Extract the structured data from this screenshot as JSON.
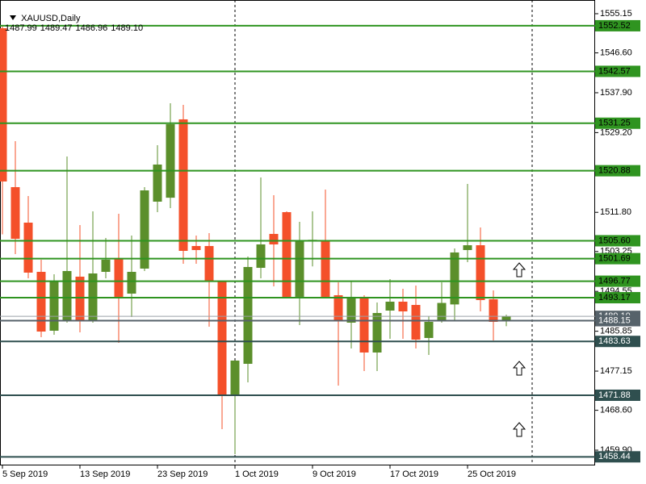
{
  "chart_data": {
    "type": "candlestick",
    "title": "XAUUSD,Daily",
    "last_ohlc": [
      1487.99,
      1489.47,
      1486.96,
      {
        "value": 1489.1,
        "label": "1489.10"
      }
    ],
    "categories": [
      "5 Sep 2019",
      null,
      null,
      null,
      null,
      null,
      "13 Sep 2019",
      null,
      null,
      null,
      null,
      null,
      "23 Sep 2019",
      null,
      null,
      null,
      null,
      null,
      "1 Oct 2019",
      null,
      null,
      null,
      null,
      null,
      "9 Oct 2019",
      null,
      null,
      null,
      null,
      null,
      "17 Oct 2019",
      null,
      null,
      null,
      null,
      null,
      "25 Oct 2019",
      null,
      null,
      null
    ],
    "open": [
      1551.98,
      1517.3,
      1509.55,
      1498.81,
      1485.96,
      1488.25,
      1497.76,
      1488.25,
      1498.81,
      1501.63,
      1494.06,
      1499.52,
      1514.13,
      1514.99,
      1532.09,
      1504.45,
      1504.45,
      1496.7,
      1472.05,
      1478.74,
      1499.69,
      1507.09,
      1511.84,
      1493.36,
      1505.5,
      1505.68,
      1493.71,
      1487.72,
      1493.36,
      1481.21,
      1490.36,
      1492.3,
      1491.59,
      1484.38,
      1488.07,
      1491.7,
      1503.57,
      1504.62,
      1492.83,
      1487.99
    ],
    "high": [
      1552.52,
      1527.33,
      1515.36,
      1501.46,
      1498.28,
      1523.99,
      1509.03,
      1512.02,
      1506.2,
      1511.49,
      1506.74,
      1517.3,
      1526.45,
      1535.61,
      1535.26,
      1506.74,
      1507.26,
      1496.88,
      1479.45,
      1502.16,
      1519.41,
      1515.53,
      1512.02,
      1509.73,
      1512.02,
      1516.77,
      1496.53,
      1496.88,
      1493.71,
      1492.13,
      1497.23,
      1495.11,
      1495.82,
      1489.13,
      1496.53,
      1503.92,
      1518.0,
      1508.5,
      1494.76,
      1489.47
    ],
    "low": [
      1507.0,
      1502.68,
      1497.4,
      1484.55,
      1485.08,
      1487.72,
      1485.61,
      1487.72,
      1497.4,
      1483.32,
      1488.95,
      1498.99,
      1511.84,
      1512.72,
      1500.57,
      1500.57,
      1486.84,
      1464.48,
      1459.03,
      1474.69,
      1497.4,
      1495.64,
      1493.18,
      1487.19,
      1500.0,
      1493.01,
      1473.99,
      1482.09,
      1477.15,
      1477.15,
      1484.2,
      1484.2,
      1482.09,
      1480.68,
      1487.72,
      1488.25,
      1500.92,
      1490.18,
      1483.85,
      1486.96
    ],
    "close": [
      1518.53,
      1506.03,
      1498.64,
      1485.78,
      1496.7,
      1498.99,
      1488.25,
      1498.46,
      1501.46,
      1493.36,
      1498.81,
      1516.59,
      1522.23,
      1531.03,
      1503.39,
      1503.57,
      1496.7,
      1472.05,
      1479.45,
      1499.87,
      1504.8,
      1504.8,
      1493.36,
      1505.68,
      1505.8,
      1493.36,
      1488.25,
      1493.36,
      1481.21,
      1489.83,
      1492.3,
      1490.18,
      1484.02,
      1487.9,
      1492.03,
      1503.04,
      1504.62,
      1492.65,
      1487.9,
      1489.1
    ],
    "up_color": "#5b8f2b",
    "down_color": "#f4502a",
    "ylim": [
      1456.56,
      1558.14
    ],
    "yticks": [
      {
        "value": 1555.15,
        "label": "1555.15"
      },
      {
        "value": 1546.6,
        "label": "1546.60"
      },
      {
        "value": 1537.9,
        "label": "1537.90"
      },
      {
        "value": 1529.2,
        "label": "1529.20"
      },
      {
        "value": 1511.8,
        "label": "1511.80"
      },
      1503.25,
      1494.55,
      1485.85,
      1477.15,
      {
        "value": 1468.6,
        "label": "1468.60"
      },
      {
        "value": 1459.9,
        "label": "1459.90"
      }
    ],
    "price_line": {
      "value": 1489.1,
      "label": "1489.10"
    },
    "levels": [
      {
        "price": 1552.52,
        "color": "#2f9420"
      },
      {
        "price": 1542.57,
        "color": "#2f9420"
      },
      {
        "price": 1531.25,
        "color": "#2f9420"
      },
      {
        "price": 1520.88,
        "color": "#2f9420"
      },
      {
        "price": {
          "value": 1505.6,
          "label": "1505.60"
        },
        "color": "#2f9420"
      },
      {
        "price": 1501.69,
        "color": "#2f9420"
      },
      {
        "price": 1496.77,
        "color": "#2f9420"
      },
      {
        "price": 1493.17,
        "color": "#2f9420"
      },
      {
        "price": 1488.15,
        "color": "#56626a"
      },
      {
        "price": 1483.63,
        "color": "#2f4f4f"
      },
      {
        "price": 1471.88,
        "color": "#2f4f4f"
      },
      {
        "price": 1458.44,
        "color": "#2f4f4f"
      }
    ]
  }
}
